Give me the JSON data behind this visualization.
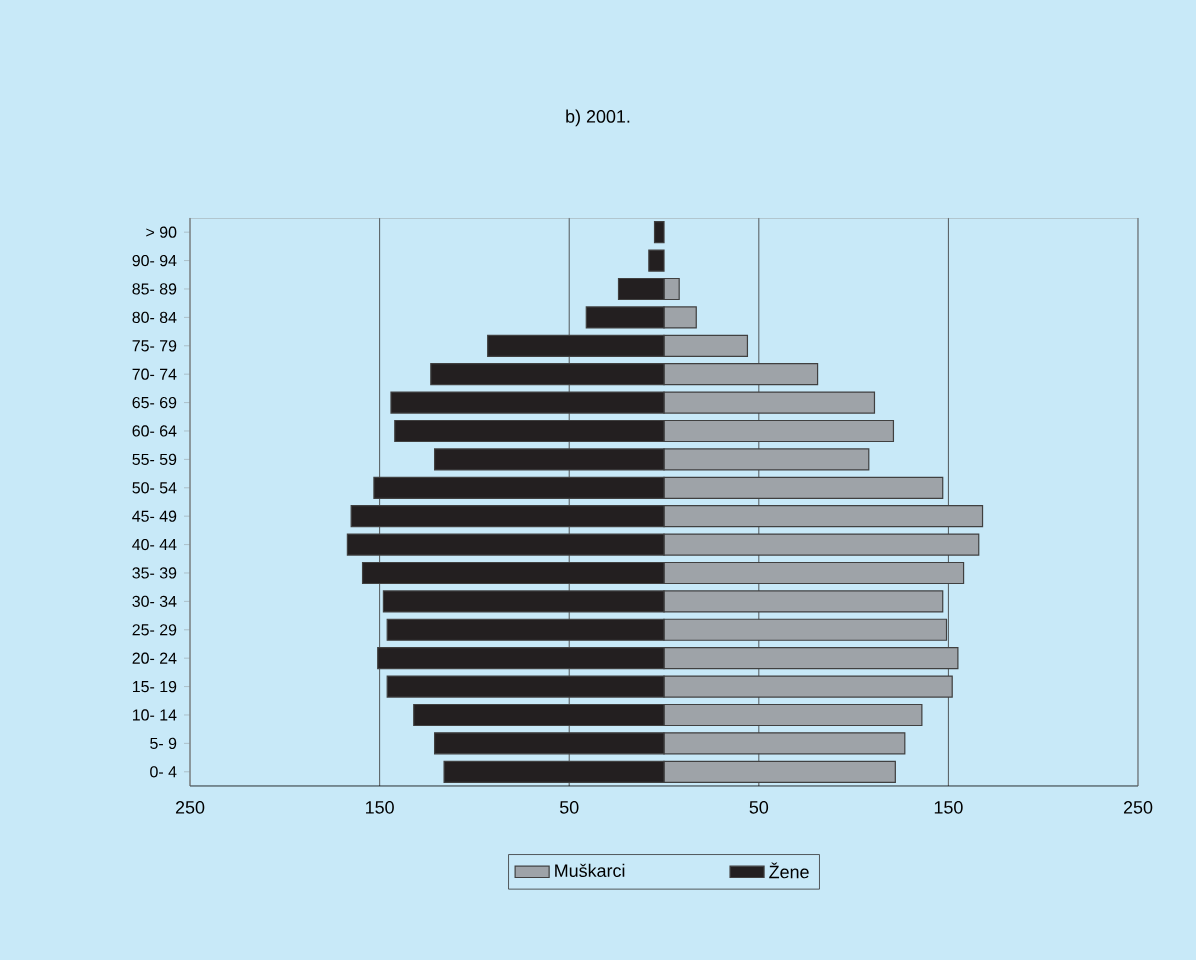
{
  "chart_data": {
    "type": "bar",
    "orientation": "horizontal",
    "title": "b) 2001.",
    "categories": [
      "> 90",
      "90- 94",
      "85- 89",
      "80- 84",
      "75- 79",
      "70- 74",
      "65- 69",
      "60- 64",
      "55- 59",
      "50- 54",
      "45- 49",
      "40- 44",
      "35- 39",
      "30- 34",
      "25- 29",
      "20- 24",
      "15- 19",
      "10- 14",
      "5- 9",
      "0- 4"
    ],
    "series": [
      {
        "name": "Muškarci",
        "color": "#9ea3a8",
        "values": [
          0,
          0,
          8,
          17,
          44,
          81,
          111,
          121,
          108,
          147,
          168,
          166,
          158,
          147,
          149,
          155,
          152,
          136,
          127,
          122
        ]
      },
      {
        "name": "Žene",
        "color": "#231f20",
        "values": [
          -5,
          -8,
          -24,
          -41,
          -93,
          -123,
          -144,
          -142,
          -121,
          -153,
          -165,
          -167,
          -159,
          -148,
          -146,
          -151,
          -146,
          -132,
          -121,
          -116
        ]
      }
    ],
    "stacked": true,
    "xlim": [
      -250,
      250
    ],
    "xticks": [
      {
        "value": -250,
        "label": "250"
      },
      {
        "value": -150,
        "label": "150"
      },
      {
        "value": -50,
        "label": "50"
      },
      {
        "value": 50,
        "label": "50"
      },
      {
        "value": 150,
        "label": "150"
      },
      {
        "value": 250,
        "label": "250"
      }
    ],
    "grid": "x",
    "legend": "bottom"
  }
}
